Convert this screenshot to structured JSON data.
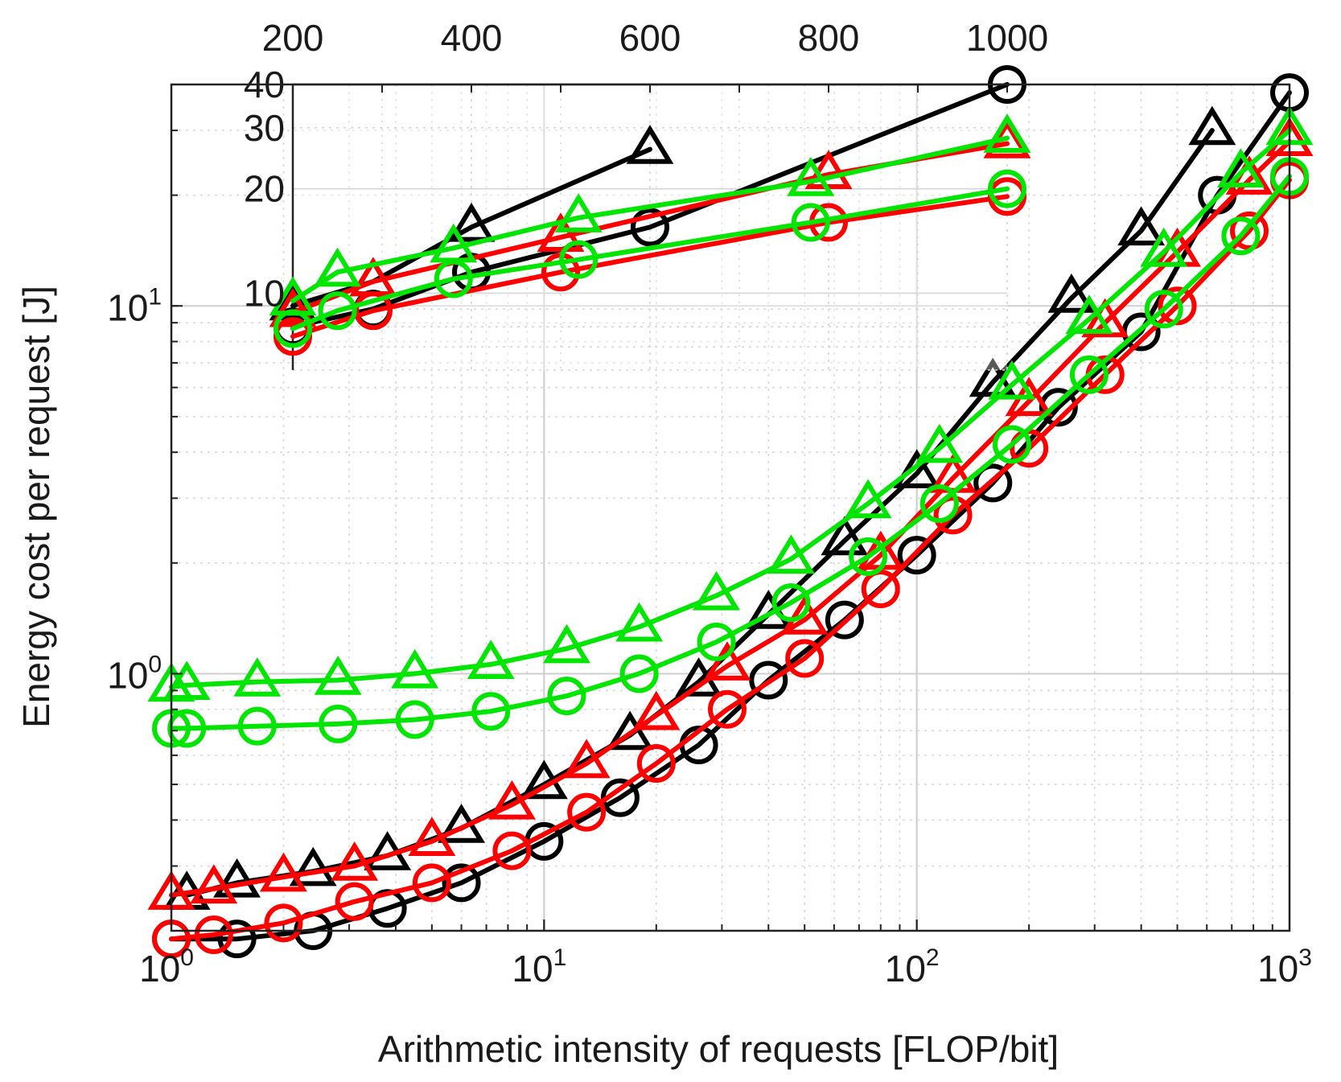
{
  "chart_data": [
    {
      "id": "main",
      "type": "line",
      "xscale": "log",
      "yscale": "log",
      "xlabel": "Arithmetic intensity of requests [FLOP/bit]",
      "ylabel": "Energy cost per request [J]",
      "xlim": [
        1,
        1000
      ],
      "ylim": [
        0.2,
        40
      ],
      "grid": true,
      "xticks": [
        {
          "value": 1,
          "base": "10",
          "exp": "0"
        },
        {
          "value": 10,
          "base": "10",
          "exp": "1"
        },
        {
          "value": 100,
          "base": "10",
          "exp": "2"
        },
        {
          "value": 1000,
          "base": "10",
          "exp": "3"
        }
      ],
      "yticks": [
        {
          "value": 1,
          "base": "10",
          "exp": "0"
        },
        {
          "value": 10,
          "base": "10",
          "exp": "1"
        }
      ],
      "series": [
        {
          "name": "black-triangle",
          "color": "#000000",
          "marker": "triangle",
          "x": [
            1.1,
            1.5,
            2.4,
            3.8,
            6,
            10,
            17,
            26,
            40,
            64,
            100,
            160,
            260,
            400,
            620
          ],
          "y": [
            0.25,
            0.27,
            0.29,
            0.32,
            0.38,
            0.5,
            0.68,
            0.95,
            1.45,
            2.3,
            3.5,
            6.2,
            10.5,
            16,
            30
          ]
        },
        {
          "name": "black-circle",
          "color": "#000000",
          "marker": "circle",
          "x": [
            1,
            1.5,
            2.4,
            3.8,
            6,
            10,
            16,
            26,
            40,
            64,
            100,
            160,
            240,
            400,
            640,
            1000
          ],
          "y": [
            0.19,
            0.19,
            0.2,
            0.23,
            0.27,
            0.35,
            0.46,
            0.64,
            0.96,
            1.4,
            2.1,
            3.3,
            5.3,
            8.5,
            20,
            38
          ]
        },
        {
          "name": "red-triangle",
          "color": "#ff0000",
          "marker": "triangle",
          "x": [
            1,
            1.3,
            2,
            3.1,
            5,
            8.2,
            13,
            20,
            31,
            50,
            80,
            125,
            200,
            320,
            500,
            780,
            1000
          ],
          "y": [
            0.25,
            0.26,
            0.28,
            0.3,
            0.35,
            0.44,
            0.57,
            0.77,
            1.05,
            1.4,
            2.1,
            3.4,
            5.5,
            9,
            14,
            22,
            28
          ]
        },
        {
          "name": "red-circle",
          "color": "#ff0000",
          "marker": "circle",
          "x": [
            1,
            1.3,
            2,
            3.1,
            5,
            8.2,
            13,
            20,
            31,
            50,
            80,
            125,
            200,
            320,
            500,
            780,
            1000
          ],
          "y": [
            0.19,
            0.195,
            0.21,
            0.24,
            0.27,
            0.33,
            0.42,
            0.57,
            0.8,
            1.1,
            1.7,
            2.7,
            4.1,
            6.5,
            10,
            16,
            22
          ]
        },
        {
          "name": "green-triangle",
          "color": "#00e600",
          "marker": "triangle",
          "x": [
            1,
            1.1,
            1.7,
            2.8,
            4.5,
            7.2,
            11.5,
            18,
            29,
            46,
            74,
            115,
            180,
            290,
            460,
            740,
            1000
          ],
          "y": [
            0.92,
            0.93,
            0.95,
            0.96,
            1,
            1.06,
            1.17,
            1.34,
            1.63,
            2.05,
            2.9,
            4.1,
            6.1,
            9.2,
            14,
            23,
            30
          ]
        },
        {
          "name": "green-circle",
          "color": "#00e600",
          "marker": "circle",
          "x": [
            1,
            1.1,
            1.7,
            2.8,
            4.5,
            7.2,
            11.5,
            18,
            29,
            46,
            74,
            115,
            180,
            290,
            460,
            740,
            1000
          ],
          "y": [
            0.71,
            0.71,
            0.72,
            0.73,
            0.75,
            0.79,
            0.87,
            1.0,
            1.22,
            1.56,
            2.08,
            2.9,
            4.2,
            6.5,
            9.8,
            15.5,
            22.5
          ]
        }
      ]
    },
    {
      "id": "inset",
      "type": "line",
      "xscale": "linear",
      "yscale": "log",
      "xlim": [
        200,
        1000
      ],
      "ylim": [
        6,
        40
      ],
      "grid": true,
      "xticks": [
        "200",
        "400",
        "600",
        "800",
        "1000"
      ],
      "yticks": [
        "10",
        "20",
        "30",
        "40"
      ],
      "series": [
        {
          "name": "black-triangle",
          "color": "#000000",
          "marker": "triangle",
          "x": [
            200,
            290,
            400,
            600
          ],
          "y": [
            9.2,
            10.8,
            15.5,
            26
          ]
        },
        {
          "name": "black-circle",
          "color": "#000000",
          "marker": "circle",
          "x": [
            200,
            290,
            400,
            600,
            1000
          ],
          "y": [
            8,
            9,
            11.5,
            15.5,
            40
          ]
        },
        {
          "name": "red-triangle",
          "color": "#ff0000",
          "marker": "triangle",
          "x": [
            200,
            290,
            500,
            800,
            1000
          ],
          "y": [
            8.8,
            10.8,
            14.5,
            22,
            27
          ]
        },
        {
          "name": "red-circle",
          "color": "#ff0000",
          "marker": "circle",
          "x": [
            200,
            290,
            500,
            800,
            1000
          ],
          "y": [
            7.5,
            8.9,
            11.5,
            16,
            19
          ]
        },
        {
          "name": "green-triangle",
          "color": "#00e600",
          "marker": "triangle",
          "x": [
            200,
            250,
            380,
            520,
            780,
            1000
          ],
          "y": [
            9.5,
            11.5,
            13.5,
            16.5,
            21,
            28
          ]
        },
        {
          "name": "green-circle",
          "color": "#00e600",
          "marker": "circle",
          "x": [
            200,
            250,
            380,
            520,
            780,
            1000
          ],
          "y": [
            7.9,
            8.9,
            11,
            12.5,
            16,
            20
          ]
        }
      ]
    }
  ]
}
